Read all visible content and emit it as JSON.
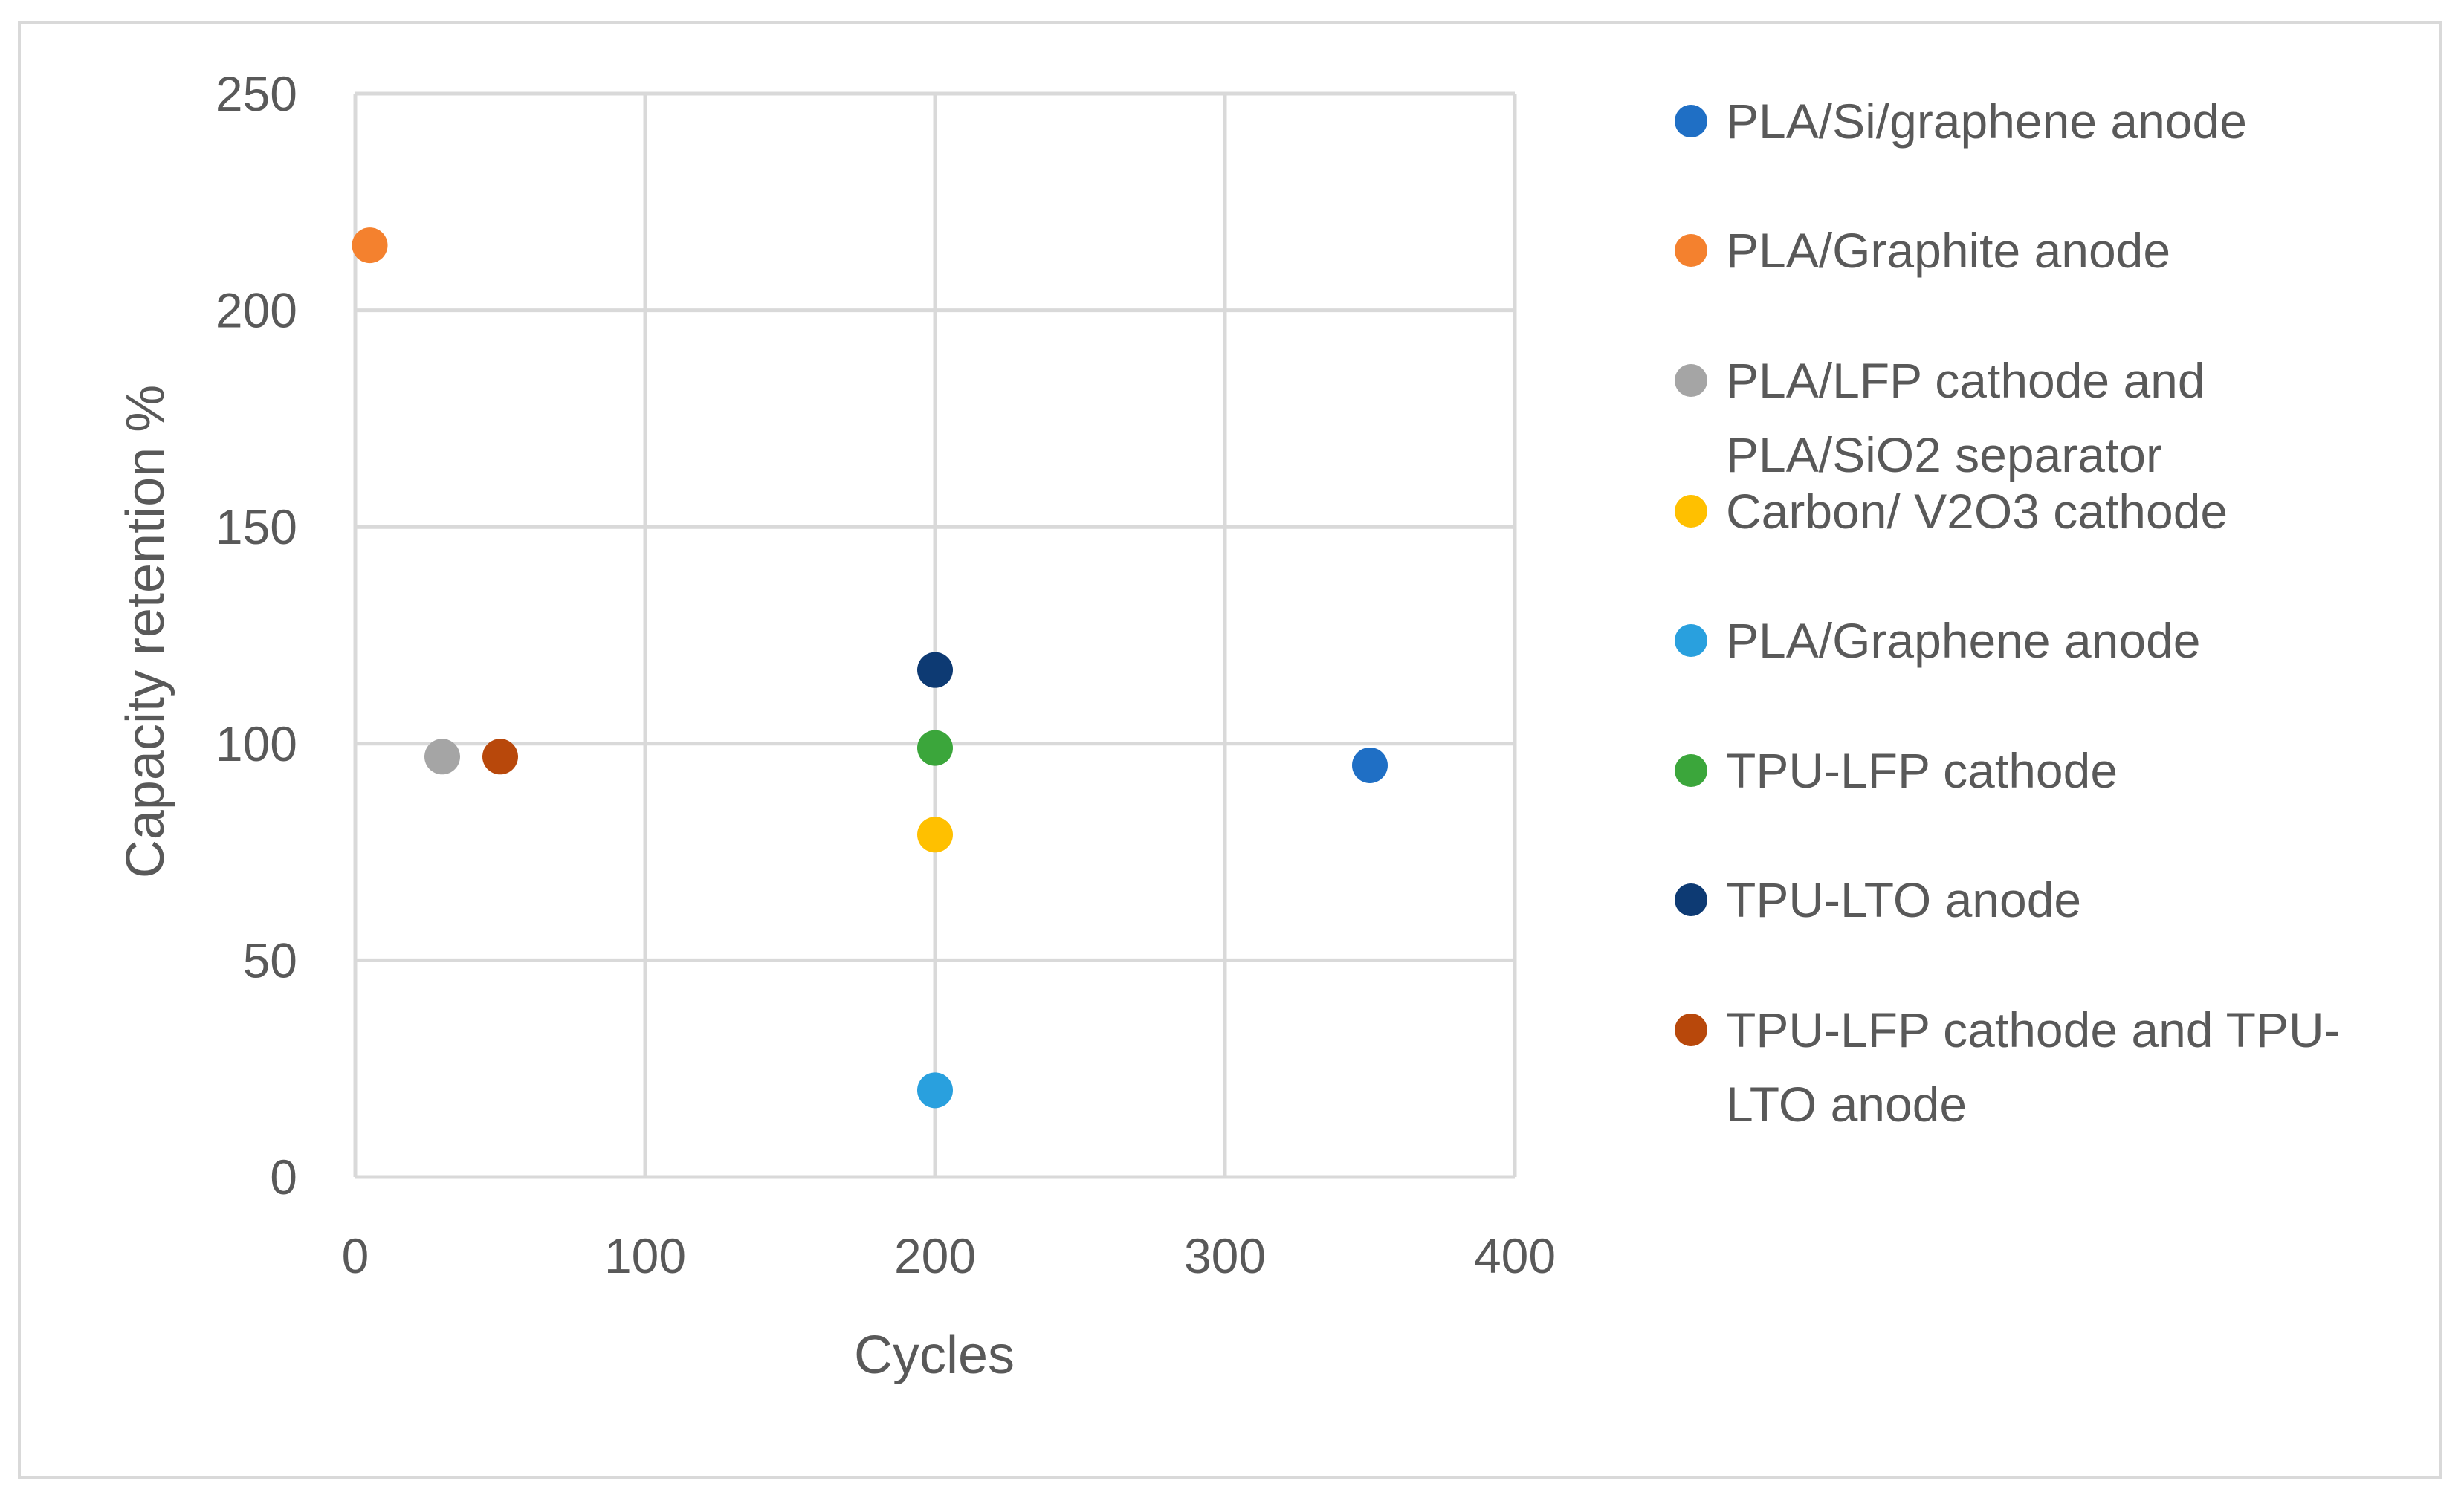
{
  "chart_data": {
    "type": "scatter",
    "title": "",
    "xlabel": "Cycles",
    "ylabel": "Capacity retention %",
    "xlim": [
      0,
      400
    ],
    "ylim": [
      0,
      250
    ],
    "xticks": [
      0,
      100,
      200,
      300,
      400
    ],
    "yticks": [
      0,
      50,
      100,
      150,
      200,
      250
    ],
    "grid": true,
    "legend_position": "right",
    "series": [
      {
        "name": "PLA/Si/graphene anode",
        "legend_lines": [
          "PLA/Si/graphene anode"
        ],
        "color": "#1F6FC5",
        "points": [
          {
            "x": 350,
            "y": 95
          }
        ]
      },
      {
        "name": "PLA/Graphite anode",
        "legend_lines": [
          "PLA/Graphite anode"
        ],
        "color": "#F4812E",
        "points": [
          {
            "x": 5,
            "y": 215
          }
        ]
      },
      {
        "name": "PLA/LFP cathode and PLA/SiO2 separator",
        "legend_lines": [
          "PLA/LFP cathode and",
          "PLA/SiO2 separator"
        ],
        "color": "#A5A5A5",
        "points": [
          {
            "x": 30,
            "y": 97
          }
        ]
      },
      {
        "name": "Carbon/ V2O3 cathode",
        "legend_lines": [
          "Carbon/ V2O3 cathode"
        ],
        "color": "#FFC000",
        "points": [
          {
            "x": 200,
            "y": 79
          }
        ]
      },
      {
        "name": "PLA/Graphene anode",
        "legend_lines": [
          "PLA/Graphene anode"
        ],
        "color": "#29A0DE",
        "points": [
          {
            "x": 200,
            "y": 20
          }
        ]
      },
      {
        "name": "TPU-LFP cathode",
        "legend_lines": [
          "TPU-LFP cathode"
        ],
        "color": "#3BA63B",
        "points": [
          {
            "x": 200,
            "y": 99
          }
        ]
      },
      {
        "name": "TPU-LTO anode",
        "legend_lines": [
          "TPU-LTO anode"
        ],
        "color": "#0D3A73",
        "points": [
          {
            "x": 200,
            "y": 117
          }
        ]
      },
      {
        "name": "TPU-LFP cathode and TPU-LTO anode",
        "legend_lines": [
          "TPU-LFP cathode and TPU-",
          "LTO anode"
        ],
        "color": "#B8480B",
        "points": [
          {
            "x": 50,
            "y": 97
          }
        ]
      }
    ]
  }
}
